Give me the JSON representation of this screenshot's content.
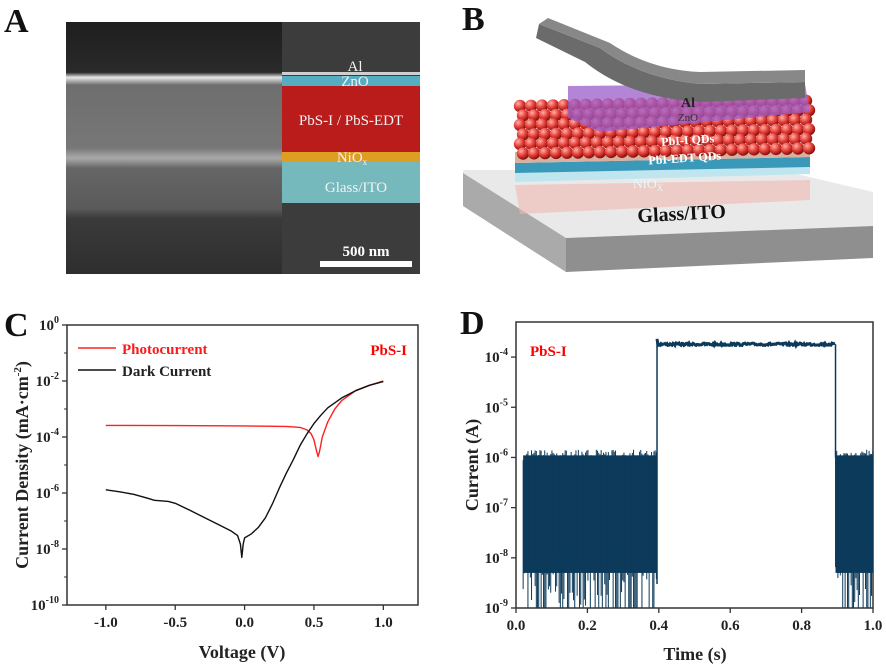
{
  "panels": {
    "a": {
      "label": "A",
      "layers": [
        "Al",
        "ZnO",
        "PbS-I / PbS-EDT",
        "NiO",
        "Glass/ITO"
      ],
      "nio_subscript": "x",
      "scale_bar": "500 nm",
      "colors": {
        "zno": "#5bc0d8",
        "pbs": "#d01818",
        "nio": "#f0a820",
        "ito": "#7fd3d8"
      }
    },
    "b": {
      "label": "B",
      "layers": [
        "Al",
        "ZnO",
        "PbI-I QDs",
        "PbI-EDT QDs",
        "NiO",
        "Glass/ITO"
      ],
      "nio_subscript": "X",
      "colors": {
        "al": "#6a6a6a",
        "zno": "#9a5cc8",
        "qd": "#e0403c",
        "nio": "#3a98b8",
        "substrate": "#9a9a9a"
      }
    },
    "c": {
      "label": "C"
    },
    "d": {
      "label": "D"
    }
  },
  "chart_data": [
    {
      "type": "line",
      "panel": "C",
      "xlabel": "Voltage (V)",
      "ylabel": "Current Density (mA·cm",
      "ylabel_sup": "-2",
      "ylabel_end": ")",
      "annotation": "PbS-I",
      "annotation_color": "#ff0000",
      "xlim": [
        -1.28,
        1.25
      ],
      "ylim": [
        1e-10,
        1
      ],
      "yscale": "log",
      "xticks": [
        -1.0,
        -0.5,
        0.0,
        0.5,
        1.0
      ],
      "xtick_labels": [
        "-1.0",
        "-0.5",
        "0.0",
        "0.5",
        "1.0"
      ],
      "yticks_exp": [
        0,
        -2,
        -4,
        -6,
        -8,
        -10
      ],
      "legend": "top-left",
      "grid": false,
      "series": [
        {
          "name": "Photocurrent",
          "color": "#ff2020",
          "x": [
            -1.0,
            -0.5,
            0.0,
            0.3,
            0.4,
            0.45,
            0.48,
            0.5,
            0.52,
            0.53,
            0.54,
            0.56,
            0.6,
            0.65,
            0.7,
            0.8,
            0.9,
            1.0
          ],
          "y": [
            0.00026,
            0.000255,
            0.00025,
            0.00024,
            0.00022,
            0.00018,
            0.00013,
            8e-05,
            3e-05,
            2e-05,
            3e-05,
            0.0001,
            0.00035,
            0.001,
            0.002,
            0.0045,
            0.007,
            0.01
          ]
        },
        {
          "name": "Dark Current",
          "color": "#111111",
          "x": [
            -1.0,
            -0.9,
            -0.8,
            -0.7,
            -0.65,
            -0.55,
            -0.5,
            -0.4,
            -0.3,
            -0.2,
            -0.1,
            -0.05,
            -0.03,
            -0.02,
            -0.01,
            0.0,
            0.05,
            0.1,
            0.15,
            0.2,
            0.25,
            0.3,
            0.35,
            0.4,
            0.45,
            0.5,
            0.55,
            0.6,
            0.7,
            0.8,
            0.9,
            1.0
          ],
          "y": [
            1.3e-06,
            1.1e-06,
            9e-07,
            6.5e-07,
            5.5e-07,
            5e-07,
            4.3e-07,
            2.5e-07,
            1.4e-07,
            8e-08,
            4.5e-08,
            3e-08,
            1.5e-08,
            5e-09,
            1.5e-08,
            2.5e-08,
            3.5e-08,
            6e-08,
            1.3e-07,
            4e-07,
            1.5e-06,
            5e-06,
            1.5e-05,
            5e-05,
            0.00013,
            0.0003,
            0.0006,
            0.0011,
            0.0025,
            0.0045,
            0.007,
            0.0095
          ]
        }
      ]
    },
    {
      "type": "line",
      "panel": "D",
      "xlabel": "Time (s)",
      "ylabel": "Current (A)",
      "annotation": "PbS-I",
      "annotation_color": "#ff0000",
      "xlim": [
        0.0,
        1.0
      ],
      "ylim": [
        1e-09,
        0.0005
      ],
      "yscale": "log",
      "xticks": [
        0.0,
        0.2,
        0.4,
        0.6,
        0.8,
        1.0
      ],
      "xtick_labels": [
        "0.0",
        "0.2",
        "0.4",
        "0.6",
        "0.8",
        "1.0"
      ],
      "yticks_exp": [
        -4,
        -5,
        -6,
        -7,
        -8,
        -9
      ],
      "grid": false,
      "color": "#0d3a5a",
      "series": [
        {
          "segments": [
            {
              "state": "dark",
              "x": [
                0.02,
                0.395
              ],
              "y_upper": 1.1e-06,
              "y_lower": 1e-09
            },
            {
              "state": "light",
              "x": [
                0.395,
                0.895
              ],
              "y_start": 0.00023,
              "y_level": 0.00018
            },
            {
              "state": "dark",
              "x": [
                0.895,
                1.0
              ],
              "y_upper": 1.1e-06,
              "y_lower": 1e-09
            }
          ]
        }
      ]
    }
  ]
}
